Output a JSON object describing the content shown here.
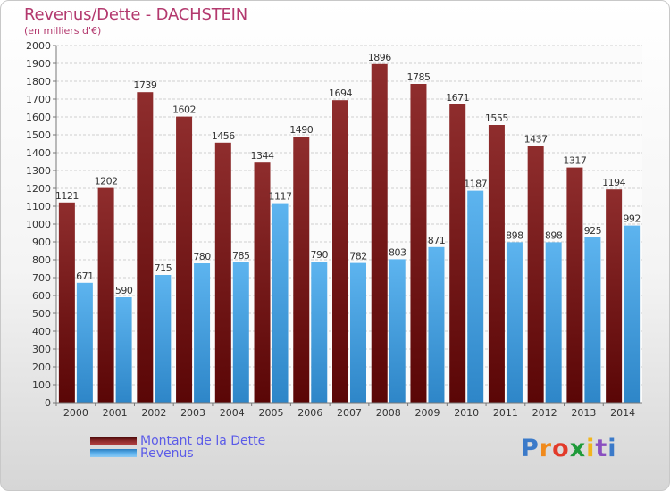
{
  "title": "Revenus/Dette - DACHSTEIN",
  "subtitle": "(en milliers d'€)",
  "logo": {
    "text": "Proxiti",
    "letters": [
      "P",
      "r",
      "o",
      "x",
      "i",
      "t",
      "i"
    ],
    "colors": [
      "#3b7ac9",
      "#f08a1c",
      "#e23a2a",
      "#1f9a3a",
      "#f2b51c",
      "#8a4fc0",
      "#3b7ac9"
    ]
  },
  "colors": {
    "dette": "#7a1f1f",
    "revenus": "#4aa5e6",
    "label": "#333333",
    "title": "#b3396e",
    "legend_text": "#5b5be8"
  },
  "chart_data": {
    "type": "bar",
    "title": "Revenus/Dette - DACHSTEIN",
    "subtitle": "(en milliers d'€)",
    "categories": [
      "2000",
      "2001",
      "2002",
      "2003",
      "2004",
      "2005",
      "2006",
      "2007",
      "2008",
      "2009",
      "2010",
      "2011",
      "2012",
      "2013",
      "2014"
    ],
    "series": [
      {
        "name": "Montant de la Dette",
        "values": [
          1121,
          1202,
          1739,
          1602,
          1456,
          1344,
          1490,
          1694,
          1896,
          1785,
          1671,
          1555,
          1437,
          1317,
          1194
        ]
      },
      {
        "name": "Revenus",
        "values": [
          671,
          590,
          715,
          780,
          785,
          1117,
          790,
          782,
          803,
          871,
          1187,
          898,
          898,
          925,
          992
        ]
      }
    ],
    "ylim": [
      0,
      2000
    ],
    "yticks": [
      0,
      100,
      200,
      300,
      400,
      500,
      600,
      700,
      800,
      900,
      1000,
      1100,
      1200,
      1300,
      1400,
      1500,
      1600,
      1700,
      1800,
      1900,
      2000
    ],
    "grid": true,
    "legend_position": "bottom-left"
  }
}
